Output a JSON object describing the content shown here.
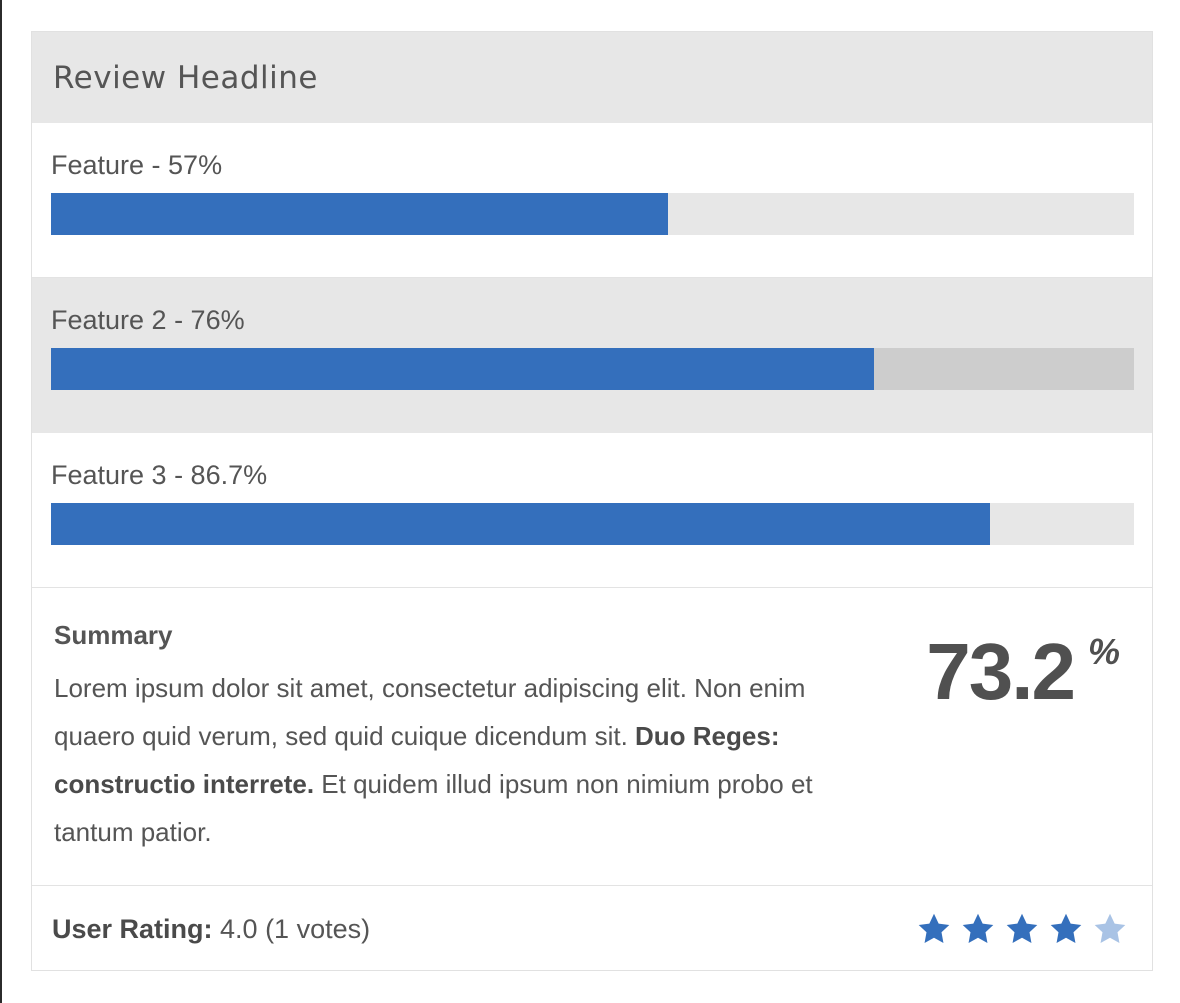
{
  "review": {
    "headline": "Review Headline",
    "features": [
      {
        "label": "Feature - 57%",
        "percent": 57
      },
      {
        "label": "Feature 2 - 76%",
        "percent": 76
      },
      {
        "label": "Feature 3 - 86.7%",
        "percent": 86.7
      }
    ],
    "summary": {
      "title": "Summary",
      "text_part1": "Lorem ipsum dolor sit amet, consectetur adipiscing elit. Non enim quaero quid verum, sed quid cuique dicendum sit. ",
      "text_bold": "Duo Reges: constructio interrete.",
      "text_part2": " Et quidem illud ipsum non nimium probo et tantum patior."
    },
    "score": {
      "value": "73.2",
      "unit": "%"
    },
    "user_rating": {
      "label": "User Rating:",
      "value": " 4.0 (1 votes)",
      "stars_filled": 4,
      "stars_total": 5
    }
  },
  "colors": {
    "bar_fill": "#346fbc",
    "star_full": "#346fbc",
    "star_empty": "#a9c3e5"
  }
}
